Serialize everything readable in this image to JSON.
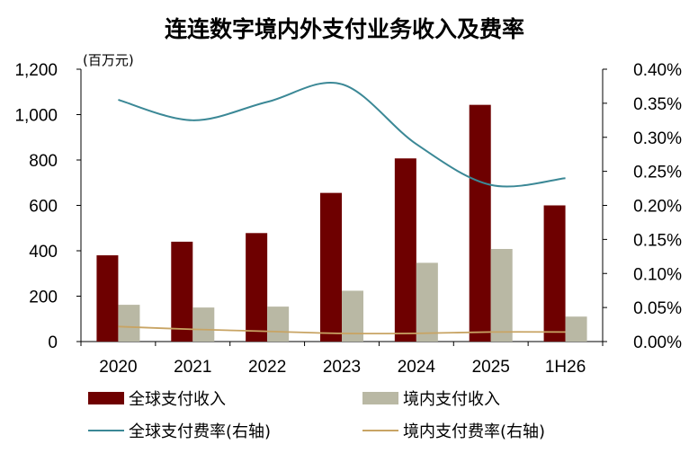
{
  "chart_data": {
    "type": "bar",
    "title": "连连数字境内外支付业务收入及费率",
    "left_axis_unit": "(百万元)",
    "categories": [
      "2020",
      "2021",
      "2022",
      "2023",
      "2024",
      "2025",
      "1H26"
    ],
    "y_left": {
      "lim": [
        0,
        1200
      ],
      "ticks": [
        "0",
        "200",
        "400",
        "600",
        "800",
        "1,000",
        "1,200"
      ],
      "tick_values": [
        0,
        200,
        400,
        600,
        800,
        1000,
        1200
      ]
    },
    "y_right": {
      "lim": [
        0,
        0.4
      ],
      "ticks": [
        "0.00%",
        "0.05%",
        "0.10%",
        "0.15%",
        "0.20%",
        "0.25%",
        "0.30%",
        "0.35%",
        "0.40%"
      ],
      "tick_values": [
        0,
        0.05,
        0.1,
        0.15,
        0.2,
        0.25,
        0.3,
        0.35,
        0.4
      ]
    },
    "bar_series": [
      {
        "name": "全球支付收入",
        "color": "#6E0000",
        "values": [
          380,
          440,
          478,
          655,
          807,
          1043,
          600
        ]
      },
      {
        "name": "境内支付收入",
        "color": "#B9B8A4",
        "values": [
          162,
          150,
          154,
          224,
          347,
          408,
          110
        ]
      }
    ],
    "line_series": [
      {
        "name": "全球支付费率(右轴)",
        "color": "#3B8896",
        "axis": "right",
        "values": [
          0.355,
          0.325,
          0.352,
          0.378,
          0.29,
          0.23,
          0.24
        ]
      },
      {
        "name": "境内支付费率(右轴)",
        "color": "#C8A464",
        "axis": "right",
        "values": [
          0.022,
          0.018,
          0.015,
          0.012,
          0.012,
          0.014,
          0.014
        ]
      }
    ],
    "legend_position": "bottom",
    "grid": false
  }
}
